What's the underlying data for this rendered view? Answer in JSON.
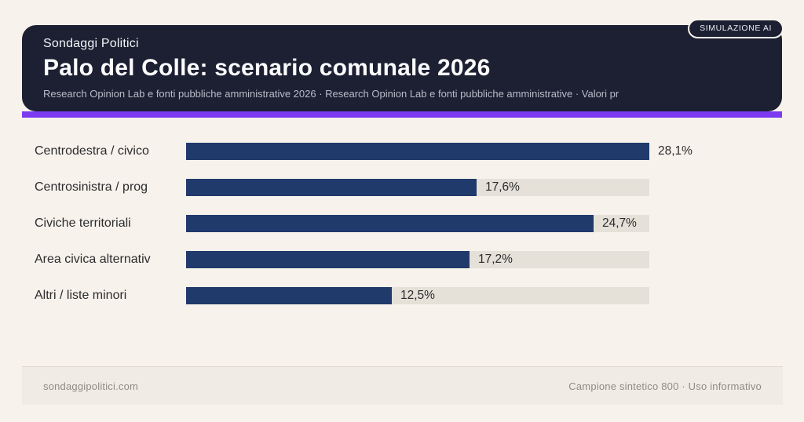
{
  "badge": {
    "label": "SIMULAZIONE AI"
  },
  "header": {
    "kicker": "Sondaggi Politici",
    "title": "Palo del Colle: scenario comunale 2026",
    "subtitle": "Research Opinion Lab e fonti pubbliche amministrative 2026 · Research Opinion Lab e fonti pubbliche amministrative · Valori pr"
  },
  "chart_data": {
    "type": "bar",
    "orientation": "horizontal",
    "title": "Palo del Colle: scenario comunale 2026",
    "categories": [
      "Centrodestra / civico",
      "Centrosinistra / prog",
      "Civiche territoriali",
      "Area civica alternativ",
      "Altri / liste minori"
    ],
    "values": [
      28.1,
      17.6,
      24.7,
      17.2,
      12.5
    ],
    "value_labels": [
      "28,1%",
      "17,6%",
      "24,7%",
      "17,2%",
      "12,5%"
    ],
    "unit": "percent",
    "axis_max": 28.1,
    "grid": false,
    "legend": false,
    "bar_color": "#203a6b",
    "track_color": "#e5e1d9"
  },
  "footer": {
    "left": "sondaggipolitici.com",
    "right": "Campione sintetico 800 · Uso informativo"
  },
  "colors": {
    "background": "#f7f2eb",
    "header_card": "#1d2032",
    "accent": "#7c3bf0",
    "bar": "#203a6b",
    "track": "#e5e1d9",
    "footer_band": "#f0ece5"
  }
}
